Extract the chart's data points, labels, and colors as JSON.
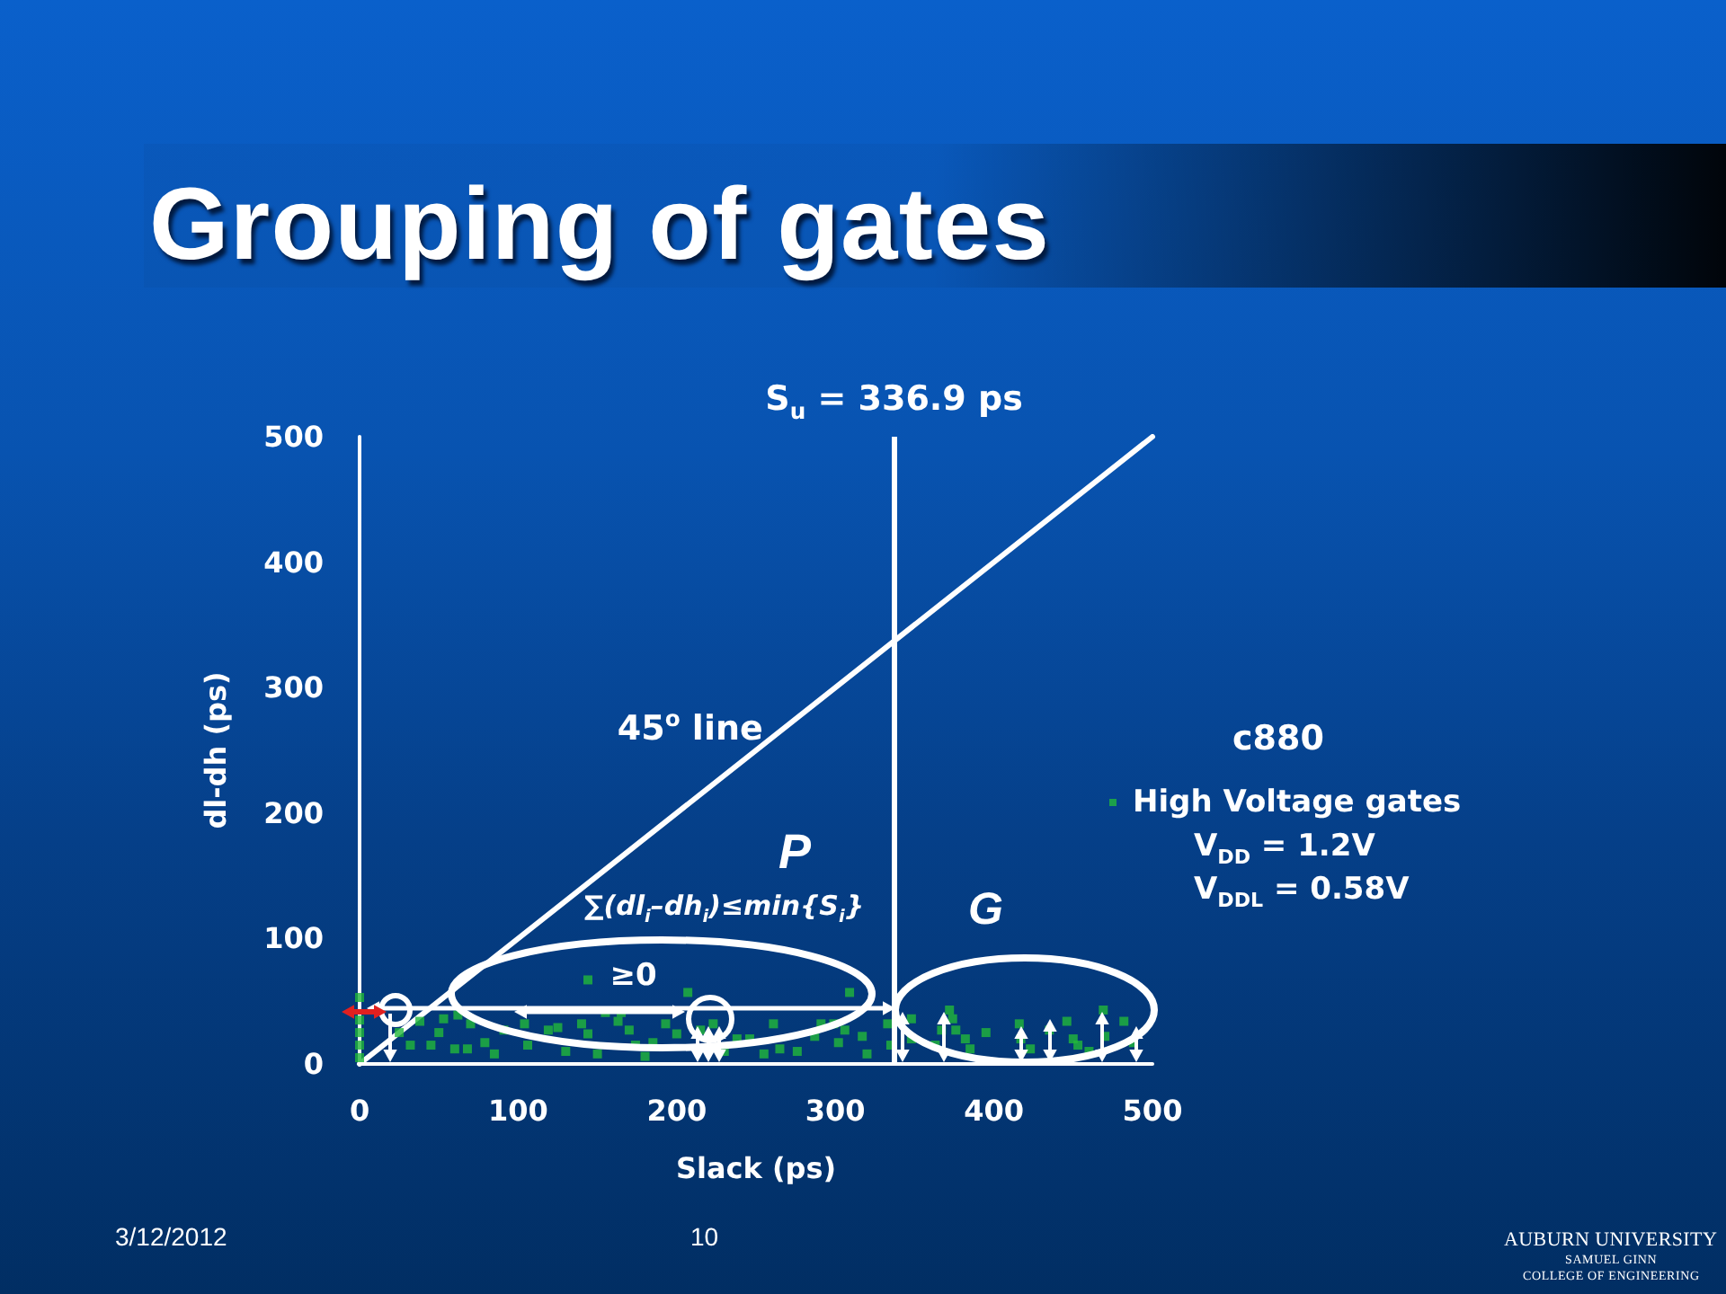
{
  "chart_data": {
    "type": "scatter",
    "title": "Grouping of gates",
    "xlabel": "Slack (ps)",
    "ylabel": "dl-dh (ps)",
    "legend_title": "c880",
    "series": [
      {
        "name": "High Voltage gates",
        "color": "#22b83a",
        "x": [
          0,
          0,
          0,
          0,
          0,
          25,
          32,
          38,
          45,
          50,
          53,
          60,
          62,
          68,
          70,
          79,
          85,
          91,
          104,
          106,
          119,
          125,
          130,
          140,
          144,
          144,
          150,
          155,
          163,
          165,
          170,
          174,
          180,
          185,
          193,
          200,
          207,
          215,
          223,
          230,
          238,
          246,
          255,
          261,
          265,
          276,
          287,
          291,
          299,
          302,
          306,
          309,
          317,
          320,
          333,
          335,
          348,
          348,
          363,
          367,
          372,
          374,
          376,
          382,
          385,
          395,
          416,
          417,
          423,
          435,
          446,
          450,
          453,
          460,
          469,
          470,
          482,
          488
        ],
        "values": [
          5,
          15,
          25,
          35,
          53,
          25,
          15,
          34,
          15,
          25,
          36,
          12,
          39,
          12,
          32,
          17,
          8,
          27,
          32,
          15,
          27,
          29,
          10,
          32,
          24,
          67,
          8,
          41,
          34,
          41,
          27,
          15,
          6,
          17,
          32,
          24,
          57,
          27,
          32,
          10,
          20,
          20,
          8,
          32,
          12,
          10,
          22,
          32,
          32,
          17,
          27,
          57,
          22,
          8,
          32,
          15,
          36,
          20,
          15,
          27,
          43,
          36,
          27,
          20,
          12,
          25,
          32,
          20,
          12,
          27,
          34,
          20,
          15,
          10,
          43,
          22,
          34,
          17
        ]
      },
      {
        "type": "line",
        "color": "#ffffff",
        "marker": "none",
        "x": [
          0,
          500
        ],
        "values": [
          0,
          500
        ]
      }
    ],
    "xlim": [
      0,
      500
    ],
    "ylim": [
      0,
      500
    ],
    "xticks": [
      0,
      100,
      200,
      300,
      400,
      500
    ],
    "yticks": [
      0,
      100,
      200,
      300,
      400,
      500
    ],
    "ref_lines": [
      {
        "axis": "x",
        "value": 336.9,
        "label": "S$_{u}$ = 336.9 ps",
        "color": "#ffffff"
      }
    ],
    "annotations": [
      "P",
      "∑(dl$_{i}$–dh$_{i}$)≤min{S$_{i}$}",
      {
        "text": "≥0",
        "x": 150,
        "y": 41
      },
      "G",
      {
        "text": "45$^{o}$ line",
        "x": 268,
        "y": 268
      },
      "V$_{DD}$ = 1.2V",
      "V$_{DDL}$ = 0.58V",
      "3/12/2012",
      "10",
      "AUBURN UNIVERSITY",
      "SAMUEL GINN",
      "COLLEGE OF ENGINEERING"
    ],
    "grid": false,
    "legend": "right",
    "marker": "square"
  }
}
